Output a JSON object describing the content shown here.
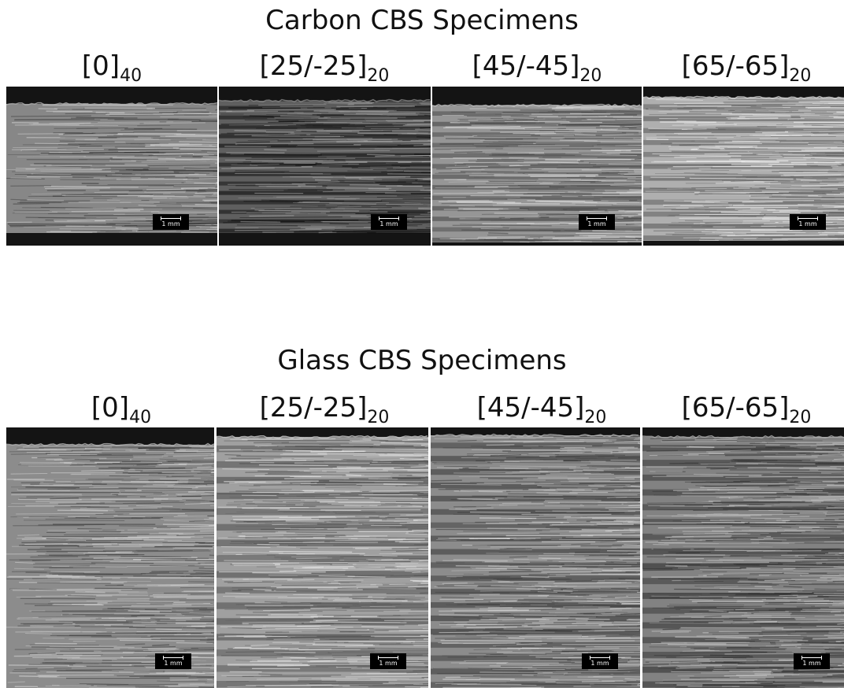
{
  "sections": [
    {
      "title": "Carbon CBS Specimens",
      "panels": [
        {
          "label": "[0]",
          "subscript": "40",
          "scale": "1 mm"
        },
        {
          "label": "[25/-25]",
          "subscript": "20",
          "scale": "1 mm"
        },
        {
          "label": "[45/-45]",
          "subscript": "20",
          "scale": "1 mm"
        },
        {
          "label": "[65/-65]",
          "subscript": "20",
          "scale": "1 mm"
        }
      ]
    },
    {
      "title": "Glass CBS Specimens",
      "panels": [
        {
          "label": "[0]",
          "subscript": "40",
          "scale": "1 mm"
        },
        {
          "label": "[25/-25]",
          "subscript": "20",
          "scale": "1 mm"
        },
        {
          "label": "[45/-45]",
          "subscript": "20",
          "scale": "1 mm"
        },
        {
          "label": "[65/-65]",
          "subscript": "20",
          "scale": "1 mm"
        }
      ]
    }
  ],
  "colors": {
    "background": "#ffffff",
    "text": "#111111",
    "scalebar_bg": "#000000",
    "scalebar_fg": "#ffffff"
  }
}
